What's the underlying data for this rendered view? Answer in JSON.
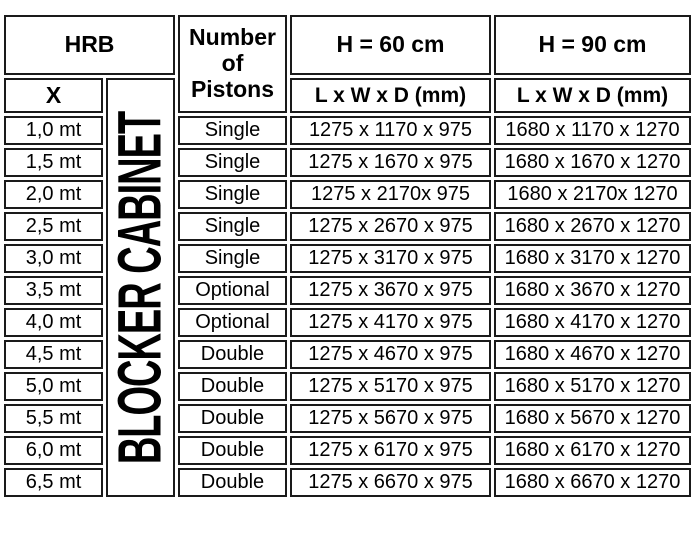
{
  "colors": {
    "border": "#1a1a1a",
    "text": "#000000",
    "background": "#ffffff"
  },
  "table": {
    "header": {
      "hrb_label": "HRB",
      "x_label": "X",
      "cabinet_label": "BLOCKER CABINET",
      "pistons_label": "Number of Pistons",
      "h60_label": "H = 60 cm",
      "h90_label": "H = 90 cm",
      "h60_dims_label": "L x W x D (mm)",
      "h90_dims_label": "L x W x D (mm)"
    },
    "rows": [
      {
        "x": "1,0 mt",
        "pistons": "Single",
        "h60": "1275 x 1170 x 975",
        "h90": "1680 x 1170 x 1270"
      },
      {
        "x": "1,5 mt",
        "pistons": "Single",
        "h60": "1275 x 1670 x 975",
        "h90": "1680 x 1670 x 1270"
      },
      {
        "x": "2,0 mt",
        "pistons": "Single",
        "h60": "1275 x 2170x 975",
        "h90": "1680 x 2170x 1270"
      },
      {
        "x": "2,5 mt",
        "pistons": "Single",
        "h60": "1275 x 2670 x 975",
        "h90": "1680 x 2670 x 1270"
      },
      {
        "x": "3,0 mt",
        "pistons": "Single",
        "h60": "1275 x 3170 x 975",
        "h90": "1680 x 3170 x 1270"
      },
      {
        "x": "3,5 mt",
        "pistons": "Optional",
        "h60": "1275 x 3670 x 975",
        "h90": "1680 x 3670 x 1270"
      },
      {
        "x": "4,0 mt",
        "pistons": "Optional",
        "h60": "1275 x 4170 x 975",
        "h90": "1680 x 4170 x 1270"
      },
      {
        "x": "4,5 mt",
        "pistons": "Double",
        "h60": "1275 x 4670 x 975",
        "h90": "1680 x 4670 x 1270"
      },
      {
        "x": "5,0 mt",
        "pistons": "Double",
        "h60": "1275 x 5170 x 975",
        "h90": "1680 x 5170 x 1270"
      },
      {
        "x": "5,5 mt",
        "pistons": "Double",
        "h60": "1275 x 5670 x 975",
        "h90": "1680 x 5670 x 1270"
      },
      {
        "x": "6,0 mt",
        "pistons": "Double",
        "h60": "1275 x 6170 x 975",
        "h90": "1680 x 6170 x 1270"
      },
      {
        "x": "6,5 mt",
        "pistons": "Double",
        "h60": "1275 x 6670 x 975",
        "h90": "1680 x 6670 x 1270"
      }
    ]
  }
}
